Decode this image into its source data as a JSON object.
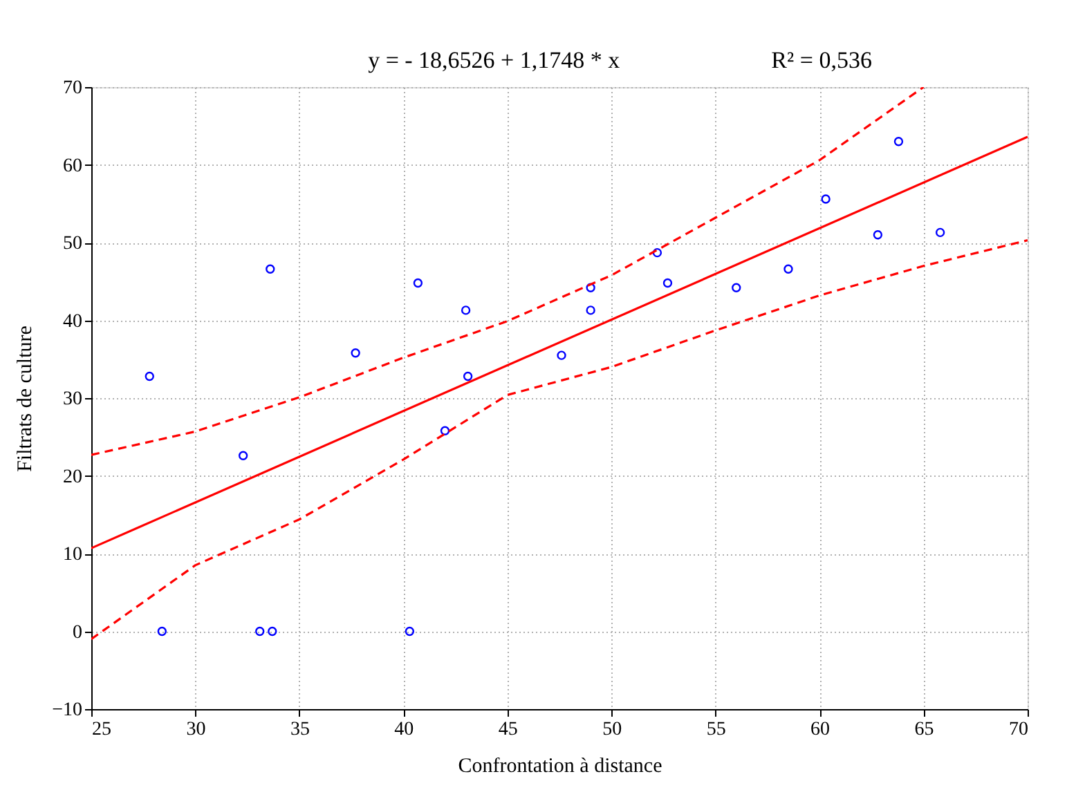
{
  "chart_data": {
    "type": "scatter",
    "title": "y = - 18,6526 + 1,1748 * x",
    "annotations": [
      "R² = 0,536"
    ],
    "xlabel": "Confrontation à distance",
    "ylabel": "Filtrats de culture",
    "xlim": [
      25,
      70
    ],
    "xticks": [
      25,
      30,
      35,
      40,
      45,
      50,
      55,
      60,
      65,
      70
    ],
    "ylim": [
      -10,
      70
    ],
    "yticks": [
      -10,
      0,
      10,
      20,
      30,
      40,
      50,
      60,
      70
    ],
    "grid": true,
    "series": [
      {
        "marker": "circle",
        "color": "#0000ff",
        "x": [
          27.8,
          28.4,
          32.3,
          33.6,
          33.1,
          33.7,
          37.7,
          40.3,
          40.7,
          42.0,
          43.0,
          43.1,
          47.6,
          49.0,
          49.0,
          52.2,
          52.7,
          56.0,
          58.5,
          60.3,
          62.8,
          63.8,
          65.8
        ],
        "values": [
          32.8,
          0,
          22.6,
          46.6,
          0,
          0,
          35.8,
          0,
          44.8,
          25.8,
          41.3,
          32.8,
          35.5,
          44.2,
          41.3,
          48.7,
          44.8,
          44.2,
          46.6,
          55.6,
          51.0,
          63.0,
          51.3
        ]
      },
      {
        "type": "line",
        "line_style": "solid",
        "color": "#ff0000",
        "x": [
          25,
          70
        ],
        "values": [
          10.7,
          63.6
        ]
      },
      {
        "type": "line",
        "line_style": "dashed",
        "color": "#ff0000",
        "x": [
          25,
          30,
          35,
          40,
          45,
          50,
          55,
          60,
          62.5,
          65
        ],
        "values": [
          22.7,
          25.7,
          30.1,
          35.2,
          39.9,
          45.8,
          53.2,
          60.6,
          65.3,
          70
        ]
      },
      {
        "type": "line",
        "line_style": "dashed",
        "color": "#ff0000",
        "x": [
          25,
          30,
          35,
          40,
          45,
          50,
          55,
          60,
          65,
          70
        ],
        "values": [
          -1.0,
          8.5,
          14.4,
          22.1,
          30.4,
          34.0,
          38.7,
          43.2,
          47.0,
          50.3
        ]
      }
    ]
  }
}
